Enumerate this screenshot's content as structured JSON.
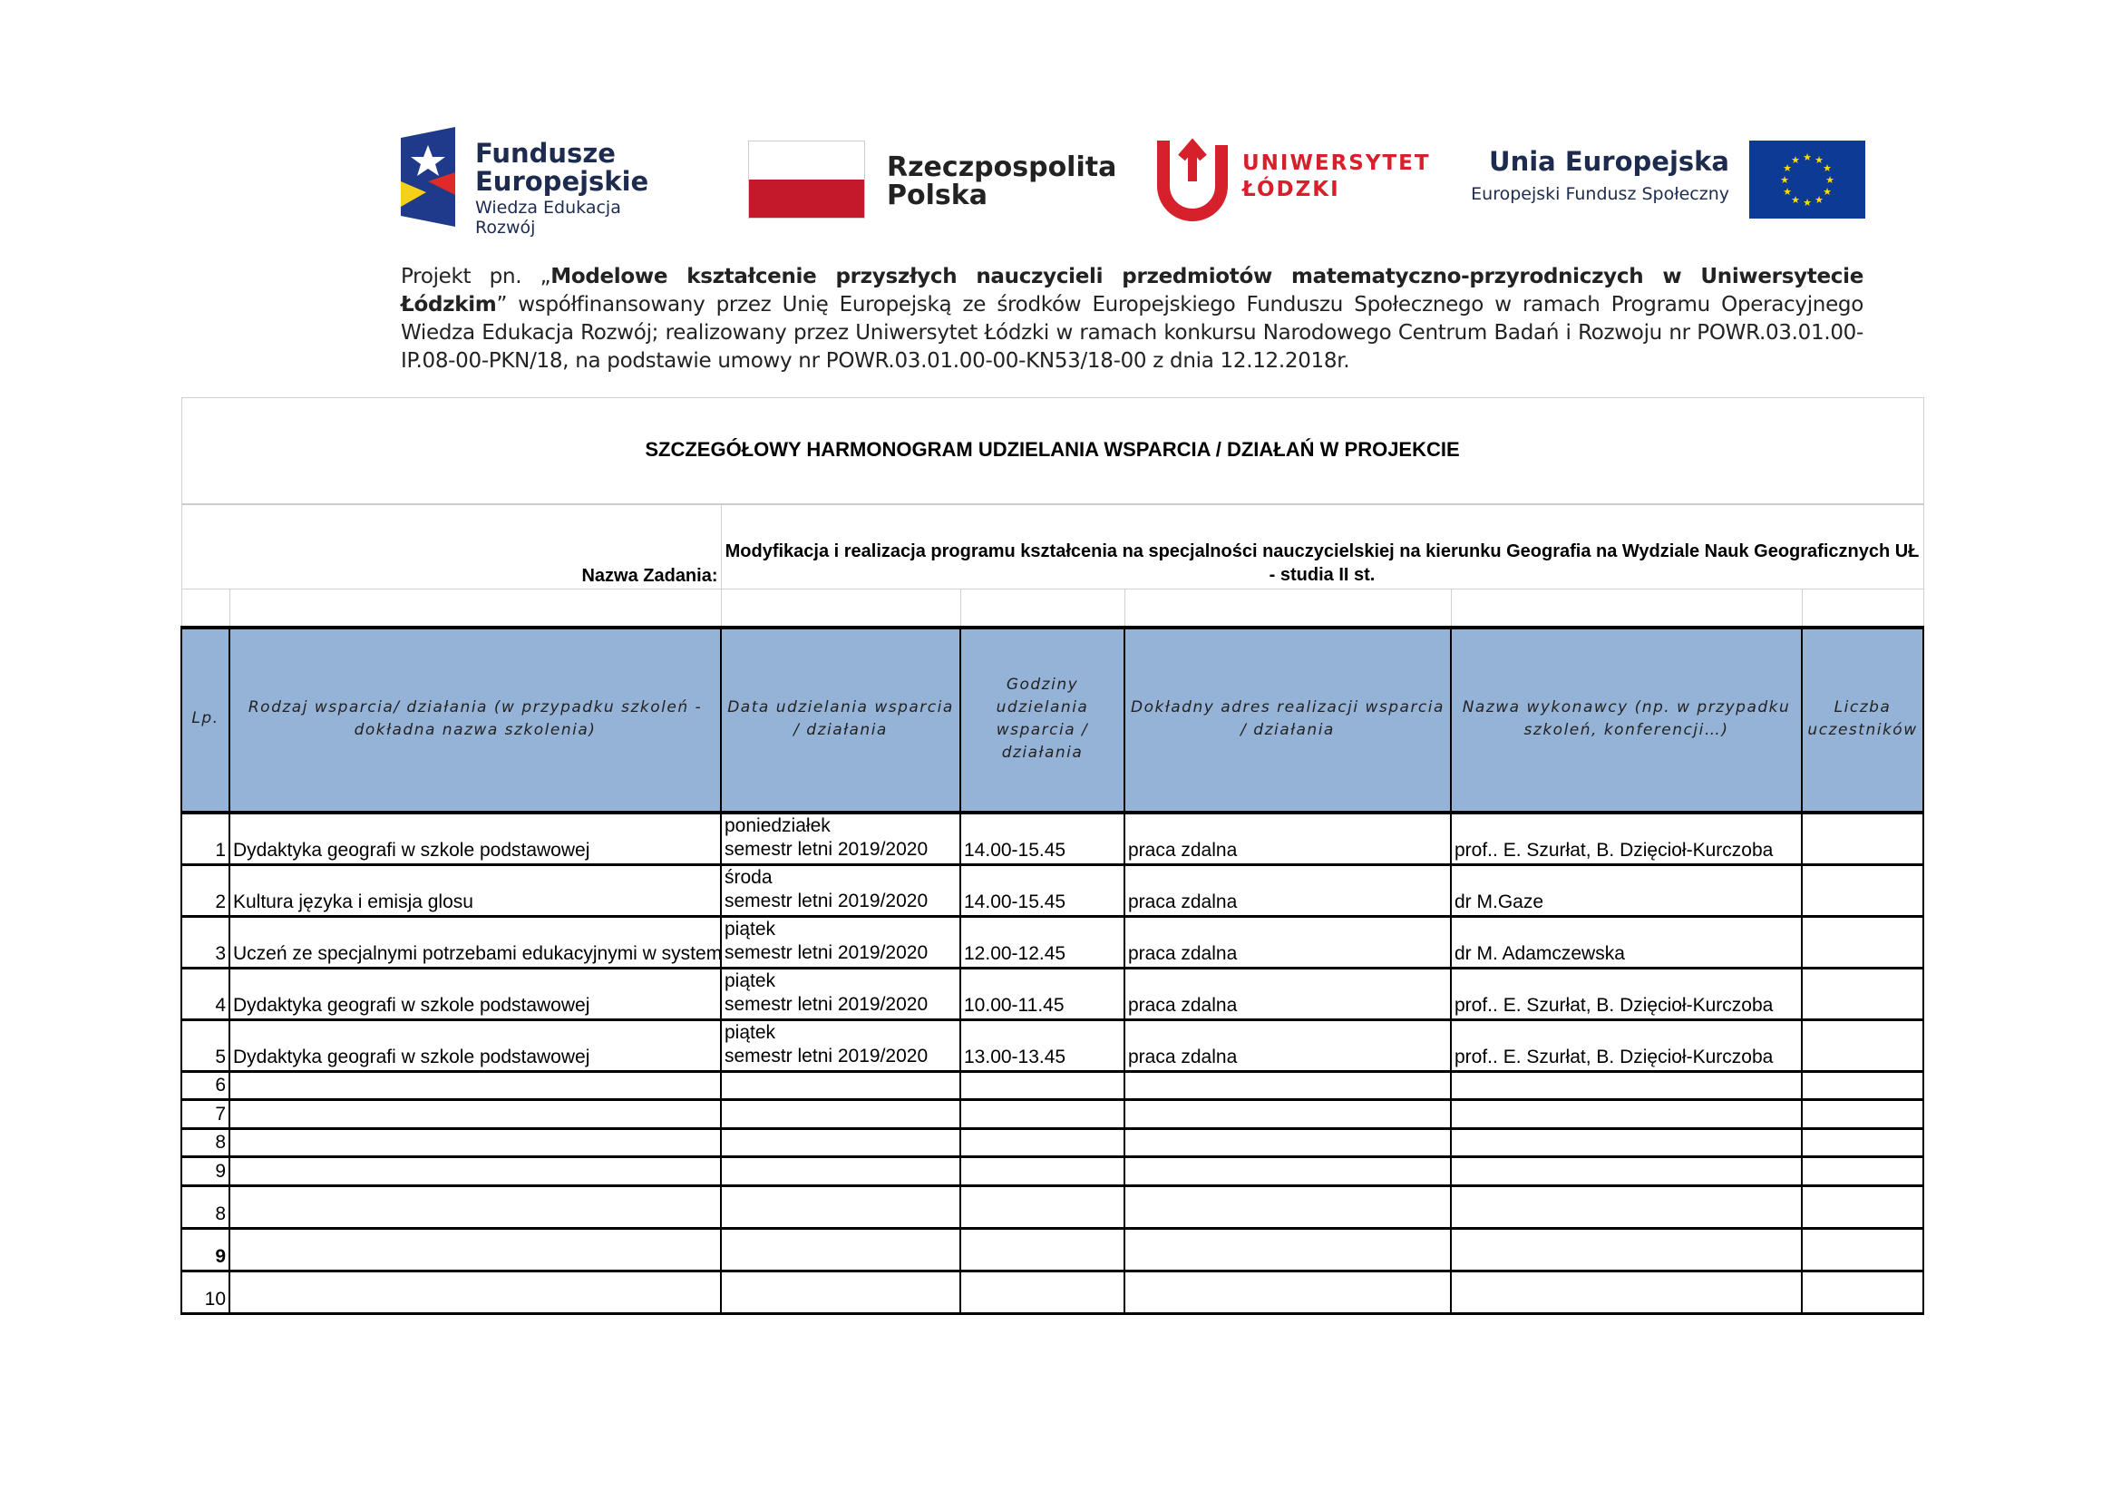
{
  "logos": {
    "fe": {
      "line1": "Fundusze",
      "line2": "Europejskie",
      "line3": "Wiedza Edukacja Rozwój"
    },
    "pl": {
      "line1": "Rzeczpospolita",
      "line2": "Polska"
    },
    "ul": {
      "line1": "UNIWERSYTET",
      "line2": "ŁÓDZKI"
    },
    "eu": {
      "line1": "Unia Europejska",
      "line2": "Europejski Fundusz Społeczny"
    }
  },
  "project": {
    "prefix": "Projekt pn. „",
    "name": "Modelowe kształcenie przyszłych nauczycieli przedmiotów matematyczno-przyrodniczych w Uniwersytecie Łódzkim",
    "suffix": "” współfinansowany przez Unię Europejską ze środków Europejskiego Funduszu Społecznego w ramach Programu Operacyjnego Wiedza Edukacja Rozwój; realizowany przez Uniwersytet Łódzki w ramach konkursu Narodowego Centrum Badań i Rozwoju nr POWR.03.01.00-IP.08-00-PKN/18, na podstawie umowy nr POWR.03.01.00-00-KN53/18-00 z dnia 12.12.2018r."
  },
  "table": {
    "title": "SZCZEGÓŁOWY HARMONOGRAM UDZIELANIA WSPARCIA / DZIAŁAŃ W PROJEKCIE",
    "task_label": "Nazwa Zadania:",
    "task_value": "Modyfikacja i realizacja programu kształcenia na specjalności nauczycielskiej na kierunku Geografia na Wydziale Nauk Geograficznych UŁ - studia II st.",
    "headers": [
      "Lp.",
      "Rodzaj wsparcia/ działania (w przypadku szkoleń - dokładna nazwa szkolenia)",
      "Data udzielania wsparcia / działania",
      "Godziny udzielania wsparcia / działania",
      "Dokładny adres realizacji wsparcia / działania",
      "Nazwa wykonawcy (np. w przypadku szkoleń, konferencji…)",
      "Liczba uczestników"
    ],
    "rows": [
      {
        "lp": "1",
        "name": "Dydaktyka geografi w szkole podstawowej",
        "day": "poniedziałek",
        "term": "semestr letni 2019/2020",
        "hours": "14.00-15.45",
        "address": "praca zdalna",
        "contractor": "prof.. E. Szurłat, B. Dzięcioł-Kurczoba",
        "participants": ""
      },
      {
        "lp": "2",
        "name": "Kultura języka i emisja glosu",
        "day": "środa",
        "term": "semestr letni 2019/2020",
        "hours": "14.00-15.45",
        "address": "praca zdalna",
        "contractor": "dr M.Gaze",
        "participants": ""
      },
      {
        "lp": "3",
        "name": "Uczeń ze specjalnymi potrzebami edukacyjnymi w systemie",
        "day": "piątek",
        "term": "semestr letni 2019/2020",
        "hours": "12.00-12.45",
        "address": "praca zdalna",
        "contractor": "dr M. Adamczewska",
        "participants": ""
      },
      {
        "lp": "4",
        "name": "Dydaktyka geografi w szkole podstawowej",
        "day": "piątek",
        "term": "semestr letni 2019/2020",
        "hours": "10.00-11.45",
        "address": "praca zdalna",
        "contractor": "prof.. E. Szurłat, B. Dzięcioł-Kurczoba",
        "participants": ""
      },
      {
        "lp": "5",
        "name": "Dydaktyka geografi w szkole podstawowej",
        "day": "piątek",
        "term": "semestr letni 2019/2020",
        "hours": "13.00-13.45",
        "address": "praca zdalna",
        "contractor": "prof.. E. Szurłat, B. Dzięcioł-Kurczoba",
        "participants": ""
      }
    ],
    "empty_rows_short": [
      "6",
      "7",
      "8",
      "9"
    ],
    "empty_rows_tall": [
      "8",
      "9",
      "10"
    ]
  },
  "colors": {
    "header_bg": "#95b3d7",
    "ul_red": "#d6202c",
    "eu_blue": "#0d3a94",
    "pl_red": "#c4182b"
  }
}
